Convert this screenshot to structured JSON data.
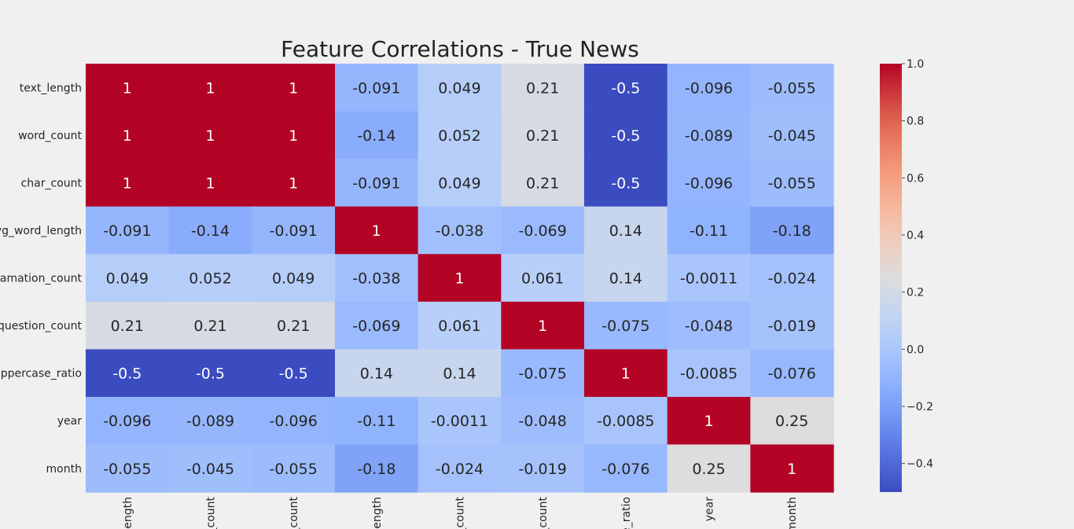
{
  "chart_data": {
    "type": "heatmap",
    "title": "Feature Correlations - True News",
    "row_labels": [
      "text_length",
      "word_count",
      "char_count",
      "vg_word_length",
      "lamation_count",
      "question_count",
      "uppercase_ratio",
      "year",
      "month"
    ],
    "col_labels": [
      "_length",
      "_count",
      "_count",
      "_length",
      "_count",
      "_count",
      "e_ratio",
      "year",
      "month"
    ],
    "matrix": [
      [
        1,
        1,
        1,
        -0.091,
        0.049,
        0.21,
        -0.5,
        -0.096,
        -0.055
      ],
      [
        1,
        1,
        1,
        -0.14,
        0.052,
        0.21,
        -0.5,
        -0.089,
        -0.045
      ],
      [
        1,
        1,
        1,
        -0.091,
        0.049,
        0.21,
        -0.5,
        -0.096,
        -0.055
      ],
      [
        -0.091,
        -0.14,
        -0.091,
        1,
        -0.038,
        -0.069,
        0.14,
        -0.11,
        -0.18
      ],
      [
        0.049,
        0.052,
        0.049,
        -0.038,
        1,
        0.061,
        0.14,
        -0.0011,
        -0.024
      ],
      [
        0.21,
        0.21,
        0.21,
        -0.069,
        0.061,
        1,
        -0.075,
        -0.048,
        -0.019
      ],
      [
        -0.5,
        -0.5,
        -0.5,
        0.14,
        0.14,
        -0.075,
        1,
        -0.0085,
        -0.076
      ],
      [
        -0.096,
        -0.089,
        -0.096,
        -0.11,
        -0.0011,
        -0.048,
        -0.0085,
        1,
        0.25
      ],
      [
        -0.055,
        -0.045,
        -0.055,
        -0.18,
        -0.024,
        -0.019,
        -0.076,
        0.25,
        1
      ]
    ],
    "cell_labels": [
      [
        "1",
        "1",
        "1",
        "-0.091",
        "0.049",
        "0.21",
        "-0.5",
        "-0.096",
        "-0.055"
      ],
      [
        "1",
        "1",
        "1",
        "-0.14",
        "0.052",
        "0.21",
        "-0.5",
        "-0.089",
        "-0.045"
      ],
      [
        "1",
        "1",
        "1",
        "-0.091",
        "0.049",
        "0.21",
        "-0.5",
        "-0.096",
        "-0.055"
      ],
      [
        "-0.091",
        "-0.14",
        "-0.091",
        "1",
        "-0.038",
        "-0.069",
        "0.14",
        "-0.11",
        "-0.18"
      ],
      [
        "0.049",
        "0.052",
        "0.049",
        "-0.038",
        "1",
        "0.061",
        "0.14",
        "-0.0011",
        "-0.024"
      ],
      [
        "0.21",
        "0.21",
        "0.21",
        "-0.069",
        "0.061",
        "1",
        "-0.075",
        "-0.048",
        "-0.019"
      ],
      [
        "-0.5",
        "-0.5",
        "-0.5",
        "0.14",
        "0.14",
        "-0.075",
        "1",
        "-0.0085",
        "-0.076"
      ],
      [
        "-0.096",
        "-0.089",
        "-0.096",
        "-0.11",
        "-0.0011",
        "-0.048",
        "-0.0085",
        "1",
        "0.25"
      ],
      [
        "-0.055",
        "-0.045",
        "-0.055",
        "-0.18",
        "-0.024",
        "-0.019",
        "-0.076",
        "0.25",
        "1"
      ]
    ],
    "colormap": "coolwarm",
    "vmin": -0.5,
    "vmax": 1.0,
    "colorbar": {
      "ticks": [
        1.0,
        0.8,
        0.6,
        0.4,
        0.2,
        0.0,
        -0.2,
        -0.4
      ],
      "tick_labels": [
        "1.0",
        "0.8",
        "0.6",
        "0.4",
        "0.2",
        "0.0",
        "−0.2",
        "−0.4"
      ],
      "range": [
        -0.5,
        1.0
      ]
    },
    "grid": false,
    "legend": "colorbar right"
  }
}
